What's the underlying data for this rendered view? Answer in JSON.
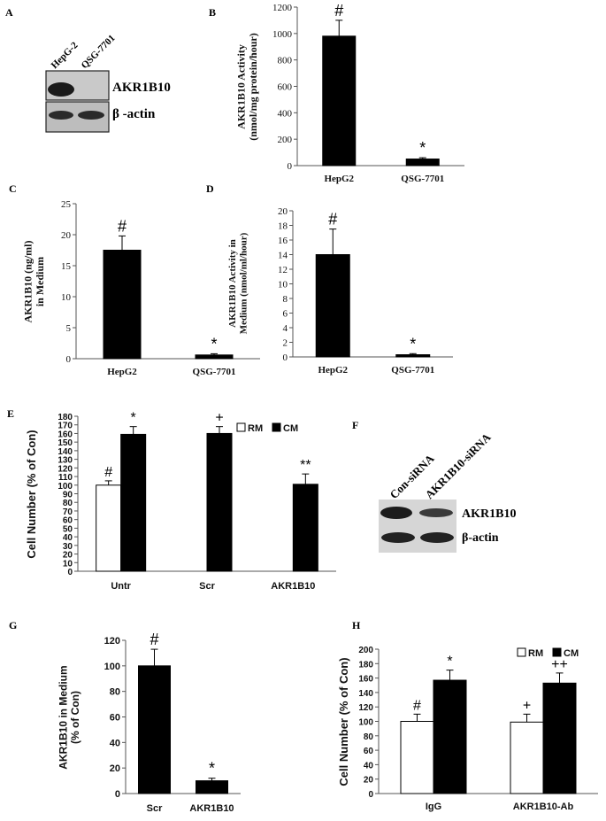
{
  "panels": {
    "A": {
      "letter": "A",
      "lanes": [
        "HepG-2",
        "QSG-7701"
      ],
      "bands": [
        "AKR1B10",
        "β -actin"
      ]
    },
    "F": {
      "letter": "F",
      "lanes": [
        "Con-siRNA",
        "AKR1B10-siRNA"
      ],
      "bands": [
        "AKR1B10",
        "β-actin"
      ]
    }
  },
  "chart_data": [
    {
      "panel": "B",
      "type": "bar",
      "categories": [
        "HepG2",
        "QSG-7701"
      ],
      "values": [
        980,
        50
      ],
      "errors": [
        120,
        10
      ],
      "ylim": [
        0,
        1200
      ],
      "yticks": [
        0,
        200,
        400,
        600,
        800,
        1000,
        1200
      ],
      "ylabel": "AKR1B10 Activity (nmol/mg protein/hour)",
      "annotations": [
        "#",
        "*"
      ]
    },
    {
      "panel": "C",
      "type": "bar",
      "categories": [
        "HepG2",
        "QSG-7701"
      ],
      "values": [
        17.5,
        0.6
      ],
      "errors": [
        2.3,
        0.2
      ],
      "ylim": [
        0,
        25
      ],
      "yticks": [
        0,
        5,
        10,
        15,
        20,
        25
      ],
      "ylabel": "AKR1B10 (ng/ml) in Medium",
      "annotations": [
        "#",
        "*"
      ]
    },
    {
      "panel": "D",
      "type": "bar",
      "categories": [
        "HepG2",
        "QSG-7701"
      ],
      "values": [
        14,
        0.3
      ],
      "errors": [
        3.5,
        0.15
      ],
      "ylim": [
        0,
        20
      ],
      "yticks": [
        0,
        2,
        4,
        6,
        8,
        10,
        12,
        14,
        16,
        18,
        20
      ],
      "ylabel": "AKR1B10 Activity in Medium (nmol/ml/hour)",
      "annotations": [
        "#",
        "*"
      ]
    },
    {
      "panel": "E",
      "type": "bar",
      "categories": [
        "Untr",
        "Scr",
        "AKR1B10"
      ],
      "series": [
        {
          "name": "RM",
          "values": [
            100,
            null,
            null
          ],
          "errors": [
            5,
            null,
            null
          ],
          "annotations": [
            "#",
            "",
            ""
          ]
        },
        {
          "name": "CM",
          "values": [
            159,
            160,
            101
          ],
          "errors": [
            9,
            8,
            12
          ],
          "annotations": [
            "*",
            "+",
            "**"
          ]
        }
      ],
      "ylim": [
        0,
        180
      ],
      "yticks": [
        0,
        10,
        20,
        30,
        40,
        50,
        60,
        70,
        80,
        90,
        100,
        110,
        120,
        130,
        140,
        150,
        160,
        170,
        180
      ],
      "ylabel": "Cell Number (% of Con)",
      "legend": "top-right"
    },
    {
      "panel": "G",
      "type": "bar",
      "categories": [
        "Scr",
        "AKR1B10"
      ],
      "values": [
        100,
        10
      ],
      "errors": [
        13,
        2
      ],
      "ylim": [
        0,
        120
      ],
      "yticks": [
        0,
        20,
        40,
        60,
        80,
        100,
        120
      ],
      "ylabel": "AKR1B10 in Medium (% of Con)",
      "annotations": [
        "#",
        "*"
      ]
    },
    {
      "panel": "H",
      "type": "bar",
      "categories": [
        "IgG",
        "AKR1B10-Ab"
      ],
      "series": [
        {
          "name": "RM",
          "values": [
            100,
            99
          ],
          "errors": [
            10,
            11
          ],
          "annotations": [
            "#",
            "+"
          ]
        },
        {
          "name": "CM",
          "values": [
            157,
            153
          ],
          "errors": [
            14,
            14
          ],
          "annotations": [
            "*",
            "++"
          ]
        }
      ],
      "ylim": [
        0,
        200
      ],
      "yticks": [
        0,
        20,
        40,
        60,
        80,
        100,
        120,
        140,
        160,
        180,
        200
      ],
      "ylabel": "Cell Number (% of Con)",
      "legend": "top-right"
    }
  ]
}
